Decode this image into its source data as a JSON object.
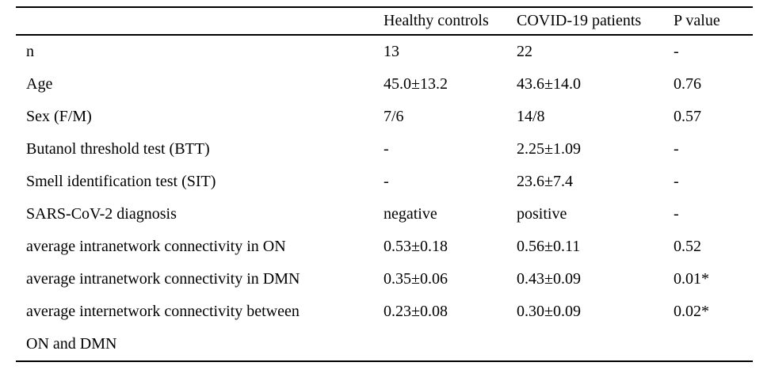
{
  "table": {
    "columns": [
      "",
      "Healthy controls",
      "COVID-19 patients",
      "P value"
    ],
    "rows": [
      [
        "n",
        "13",
        "22",
        "-"
      ],
      [
        "Age",
        "45.0±13.2",
        "43.6±14.0",
        "0.76"
      ],
      [
        "Sex (F/M)",
        "7/6",
        "14/8",
        "0.57"
      ],
      [
        "Butanol threshold test (BTT)",
        "-",
        "2.25±1.09",
        "-"
      ],
      [
        "Smell identification test (SIT)",
        "-",
        "23.6±7.4",
        "-"
      ],
      [
        "SARS-CoV-2 diagnosis",
        "negative",
        "positive",
        "-"
      ],
      [
        "average intranetwork connectivity in ON",
        "0.53±0.18",
        "0.56±0.11",
        "0.52"
      ],
      [
        "average intranetwork connectivity in DMN",
        "0.35±0.06",
        "0.43±0.09",
        "0.01*"
      ],
      [
        "average internetwork connectivity between\nON and DMN",
        "0.23±0.08",
        "0.30±0.09",
        "0.02*"
      ]
    ]
  }
}
